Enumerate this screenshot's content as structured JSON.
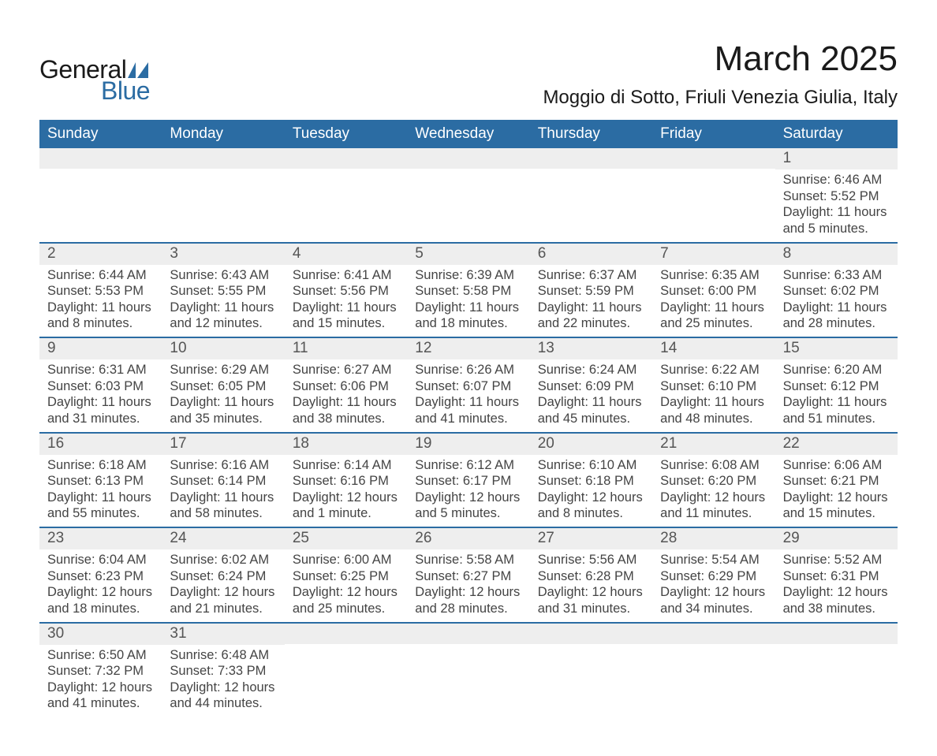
{
  "logo": {
    "text1": "General",
    "text2": "Blue",
    "accent_color": "#2b6ca3"
  },
  "title": "March 2025",
  "location": "Moggio di Sotto, Friuli Venezia Giulia, Italy",
  "day_names": [
    "Sunday",
    "Monday",
    "Tuesday",
    "Wednesday",
    "Thursday",
    "Friday",
    "Saturday"
  ],
  "colors": {
    "header_bg": "#2b6ca3",
    "header_fg": "#ffffff",
    "daynum_bg": "#eeeeee",
    "text": "#444444",
    "border": "#2b6ca3"
  },
  "weeks": [
    [
      {
        "n": "",
        "sunrise": "",
        "sunset": "",
        "daylight": ""
      },
      {
        "n": "",
        "sunrise": "",
        "sunset": "",
        "daylight": ""
      },
      {
        "n": "",
        "sunrise": "",
        "sunset": "",
        "daylight": ""
      },
      {
        "n": "",
        "sunrise": "",
        "sunset": "",
        "daylight": ""
      },
      {
        "n": "",
        "sunrise": "",
        "sunset": "",
        "daylight": ""
      },
      {
        "n": "",
        "sunrise": "",
        "sunset": "",
        "daylight": ""
      },
      {
        "n": "1",
        "sunrise": "Sunrise: 6:46 AM",
        "sunset": "Sunset: 5:52 PM",
        "daylight": "Daylight: 11 hours and 5 minutes."
      }
    ],
    [
      {
        "n": "2",
        "sunrise": "Sunrise: 6:44 AM",
        "sunset": "Sunset: 5:53 PM",
        "daylight": "Daylight: 11 hours and 8 minutes."
      },
      {
        "n": "3",
        "sunrise": "Sunrise: 6:43 AM",
        "sunset": "Sunset: 5:55 PM",
        "daylight": "Daylight: 11 hours and 12 minutes."
      },
      {
        "n": "4",
        "sunrise": "Sunrise: 6:41 AM",
        "sunset": "Sunset: 5:56 PM",
        "daylight": "Daylight: 11 hours and 15 minutes."
      },
      {
        "n": "5",
        "sunrise": "Sunrise: 6:39 AM",
        "sunset": "Sunset: 5:58 PM",
        "daylight": "Daylight: 11 hours and 18 minutes."
      },
      {
        "n": "6",
        "sunrise": "Sunrise: 6:37 AM",
        "sunset": "Sunset: 5:59 PM",
        "daylight": "Daylight: 11 hours and 22 minutes."
      },
      {
        "n": "7",
        "sunrise": "Sunrise: 6:35 AM",
        "sunset": "Sunset: 6:00 PM",
        "daylight": "Daylight: 11 hours and 25 minutes."
      },
      {
        "n": "8",
        "sunrise": "Sunrise: 6:33 AM",
        "sunset": "Sunset: 6:02 PM",
        "daylight": "Daylight: 11 hours and 28 minutes."
      }
    ],
    [
      {
        "n": "9",
        "sunrise": "Sunrise: 6:31 AM",
        "sunset": "Sunset: 6:03 PM",
        "daylight": "Daylight: 11 hours and 31 minutes."
      },
      {
        "n": "10",
        "sunrise": "Sunrise: 6:29 AM",
        "sunset": "Sunset: 6:05 PM",
        "daylight": "Daylight: 11 hours and 35 minutes."
      },
      {
        "n": "11",
        "sunrise": "Sunrise: 6:27 AM",
        "sunset": "Sunset: 6:06 PM",
        "daylight": "Daylight: 11 hours and 38 minutes."
      },
      {
        "n": "12",
        "sunrise": "Sunrise: 6:26 AM",
        "sunset": "Sunset: 6:07 PM",
        "daylight": "Daylight: 11 hours and 41 minutes."
      },
      {
        "n": "13",
        "sunrise": "Sunrise: 6:24 AM",
        "sunset": "Sunset: 6:09 PM",
        "daylight": "Daylight: 11 hours and 45 minutes."
      },
      {
        "n": "14",
        "sunrise": "Sunrise: 6:22 AM",
        "sunset": "Sunset: 6:10 PM",
        "daylight": "Daylight: 11 hours and 48 minutes."
      },
      {
        "n": "15",
        "sunrise": "Sunrise: 6:20 AM",
        "sunset": "Sunset: 6:12 PM",
        "daylight": "Daylight: 11 hours and 51 minutes."
      }
    ],
    [
      {
        "n": "16",
        "sunrise": "Sunrise: 6:18 AM",
        "sunset": "Sunset: 6:13 PM",
        "daylight": "Daylight: 11 hours and 55 minutes."
      },
      {
        "n": "17",
        "sunrise": "Sunrise: 6:16 AM",
        "sunset": "Sunset: 6:14 PM",
        "daylight": "Daylight: 11 hours and 58 minutes."
      },
      {
        "n": "18",
        "sunrise": "Sunrise: 6:14 AM",
        "sunset": "Sunset: 6:16 PM",
        "daylight": "Daylight: 12 hours and 1 minute."
      },
      {
        "n": "19",
        "sunrise": "Sunrise: 6:12 AM",
        "sunset": "Sunset: 6:17 PM",
        "daylight": "Daylight: 12 hours and 5 minutes."
      },
      {
        "n": "20",
        "sunrise": "Sunrise: 6:10 AM",
        "sunset": "Sunset: 6:18 PM",
        "daylight": "Daylight: 12 hours and 8 minutes."
      },
      {
        "n": "21",
        "sunrise": "Sunrise: 6:08 AM",
        "sunset": "Sunset: 6:20 PM",
        "daylight": "Daylight: 12 hours and 11 minutes."
      },
      {
        "n": "22",
        "sunrise": "Sunrise: 6:06 AM",
        "sunset": "Sunset: 6:21 PM",
        "daylight": "Daylight: 12 hours and 15 minutes."
      }
    ],
    [
      {
        "n": "23",
        "sunrise": "Sunrise: 6:04 AM",
        "sunset": "Sunset: 6:23 PM",
        "daylight": "Daylight: 12 hours and 18 minutes."
      },
      {
        "n": "24",
        "sunrise": "Sunrise: 6:02 AM",
        "sunset": "Sunset: 6:24 PM",
        "daylight": "Daylight: 12 hours and 21 minutes."
      },
      {
        "n": "25",
        "sunrise": "Sunrise: 6:00 AM",
        "sunset": "Sunset: 6:25 PM",
        "daylight": "Daylight: 12 hours and 25 minutes."
      },
      {
        "n": "26",
        "sunrise": "Sunrise: 5:58 AM",
        "sunset": "Sunset: 6:27 PM",
        "daylight": "Daylight: 12 hours and 28 minutes."
      },
      {
        "n": "27",
        "sunrise": "Sunrise: 5:56 AM",
        "sunset": "Sunset: 6:28 PM",
        "daylight": "Daylight: 12 hours and 31 minutes."
      },
      {
        "n": "28",
        "sunrise": "Sunrise: 5:54 AM",
        "sunset": "Sunset: 6:29 PM",
        "daylight": "Daylight: 12 hours and 34 minutes."
      },
      {
        "n": "29",
        "sunrise": "Sunrise: 5:52 AM",
        "sunset": "Sunset: 6:31 PM",
        "daylight": "Daylight: 12 hours and 38 minutes."
      }
    ],
    [
      {
        "n": "30",
        "sunrise": "Sunrise: 6:50 AM",
        "sunset": "Sunset: 7:32 PM",
        "daylight": "Daylight: 12 hours and 41 minutes."
      },
      {
        "n": "31",
        "sunrise": "Sunrise: 6:48 AM",
        "sunset": "Sunset: 7:33 PM",
        "daylight": "Daylight: 12 hours and 44 minutes."
      },
      {
        "n": "",
        "sunrise": "",
        "sunset": "",
        "daylight": ""
      },
      {
        "n": "",
        "sunrise": "",
        "sunset": "",
        "daylight": ""
      },
      {
        "n": "",
        "sunrise": "",
        "sunset": "",
        "daylight": ""
      },
      {
        "n": "",
        "sunrise": "",
        "sunset": "",
        "daylight": ""
      },
      {
        "n": "",
        "sunrise": "",
        "sunset": "",
        "daylight": ""
      }
    ]
  ]
}
